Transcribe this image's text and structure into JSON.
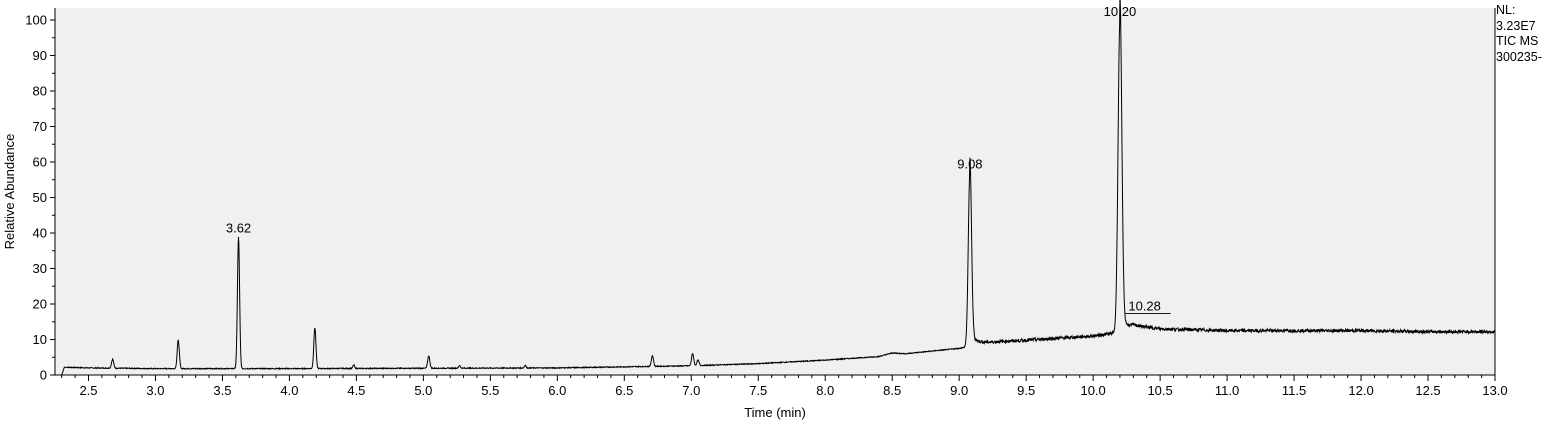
{
  "side_info": {
    "nl_label": "NL:",
    "nl_value": "3.23E7",
    "scan_type": "TIC  MS",
    "file_id": "300235-"
  },
  "chart_data": {
    "type": "line",
    "xlabel": "Time (min)",
    "ylabel": "Relative Abundance",
    "xlim": [
      2.25,
      13.0
    ],
    "ylim": [
      0,
      100
    ],
    "x_ticks": [
      "2.5",
      "3.0",
      "3.5",
      "4.0",
      "4.5",
      "5.0",
      "5.5",
      "6.0",
      "6.5",
      "7.0",
      "7.5",
      "8.0",
      "8.5",
      "9.0",
      "9.5",
      "10.0",
      "10.5",
      "11.0",
      "11.5",
      "12.0",
      "12.5",
      "13.0"
    ],
    "y_ticks": [
      "0",
      "10",
      "20",
      "30",
      "40",
      "50",
      "60",
      "70",
      "80",
      "90",
      "100"
    ],
    "plot_background": "#f0f0f0",
    "line_color": "#000000",
    "baseline": [
      [
        2.3,
        0.0
      ],
      [
        2.32,
        2.2
      ],
      [
        2.5,
        2.0
      ],
      [
        3.0,
        1.8
      ],
      [
        3.5,
        1.8
      ],
      [
        4.0,
        1.8
      ],
      [
        5.0,
        1.9
      ],
      [
        6.0,
        2.0
      ],
      [
        6.5,
        2.3
      ],
      [
        7.0,
        2.6
      ],
      [
        7.5,
        3.2
      ],
      [
        8.0,
        4.2
      ],
      [
        8.4,
        5.2
      ],
      [
        8.5,
        6.2
      ],
      [
        8.6,
        6.0
      ],
      [
        9.0,
        7.5
      ],
      [
        9.07,
        8.0
      ],
      [
        9.1,
        9.0
      ],
      [
        9.5,
        9.8
      ],
      [
        10.0,
        11.0
      ],
      [
        10.2,
        12.0
      ],
      [
        10.3,
        14.0
      ],
      [
        10.5,
        13.0
      ],
      [
        11.0,
        12.5
      ],
      [
        12.0,
        12.5
      ],
      [
        12.5,
        12.2
      ],
      [
        13.0,
        12.2
      ]
    ],
    "peaks": [
      {
        "rt": 2.68,
        "height": 2.5,
        "width": 0.008
      },
      {
        "rt": 3.17,
        "height": 8.0,
        "width": 0.008
      },
      {
        "rt": 3.62,
        "height": 37.0,
        "width": 0.008
      },
      {
        "rt": 4.19,
        "height": 11.5,
        "width": 0.008
      },
      {
        "rt": 4.48,
        "height": 1.0,
        "width": 0.006
      },
      {
        "rt": 5.04,
        "height": 3.5,
        "width": 0.008
      },
      {
        "rt": 5.27,
        "height": 0.8,
        "width": 0.006
      },
      {
        "rt": 5.76,
        "height": 0.8,
        "width": 0.006
      },
      {
        "rt": 6.71,
        "height": 3.0,
        "width": 0.008
      },
      {
        "rt": 7.01,
        "height": 3.5,
        "width": 0.008
      },
      {
        "rt": 7.05,
        "height": 1.5,
        "width": 0.008
      },
      {
        "rt": 9.08,
        "height": 49.0,
        "width": 0.012
      },
      {
        "rt": 10.2,
        "height": 88.0,
        "width": 0.014
      }
    ],
    "peak_labels": [
      {
        "x": 3.62,
        "y": 39.0,
        "text": "3.62"
      },
      {
        "x": 9.08,
        "y": 57.0,
        "text": "9.08"
      },
      {
        "x": 10.2,
        "y": 100.0,
        "text": "10.20"
      },
      {
        "x": 10.28,
        "y": 19.0,
        "text": "10.28"
      }
    ]
  }
}
